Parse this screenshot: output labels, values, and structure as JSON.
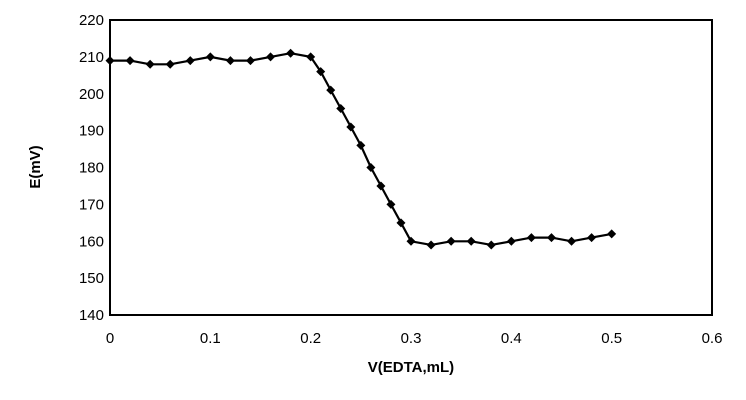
{
  "chart_data": {
    "type": "line",
    "title": "",
    "xlabel": "V(EDTA,mL)",
    "ylabel": "E(mV)",
    "xlim": [
      0,
      0.6
    ],
    "ylim": [
      140,
      220
    ],
    "xticks": [
      0,
      0.1,
      0.2,
      0.3,
      0.4,
      0.5,
      0.6
    ],
    "xtick_labels": [
      "0",
      "0.1",
      "0.2",
      "0.3",
      "0.4",
      "0.5",
      "0.6"
    ],
    "yticks": [
      140,
      150,
      160,
      170,
      180,
      190,
      200,
      210,
      220
    ],
    "ytick_labels": [
      "140",
      "150",
      "160",
      "170",
      "180",
      "190",
      "200",
      "210",
      "220"
    ],
    "grid": false,
    "legend": "none",
    "series": [
      {
        "color": "#000000",
        "marker": "diamond",
        "x": [
          0,
          0.02,
          0.04,
          0.06,
          0.08,
          0.1,
          0.12,
          0.14,
          0.16,
          0.18,
          0.2,
          0.21,
          0.22,
          0.23,
          0.24,
          0.25,
          0.26,
          0.27,
          0.28,
          0.29,
          0.3,
          0.32,
          0.34,
          0.36,
          0.38,
          0.4,
          0.42,
          0.44,
          0.46,
          0.48,
          0.5
        ],
        "y": [
          209,
          209,
          208,
          208,
          209,
          210,
          209,
          209,
          210,
          211,
          210,
          206,
          201,
          196,
          191,
          186,
          180,
          175,
          170,
          165,
          160,
          159,
          160,
          160,
          159,
          160,
          161,
          161,
          160,
          161,
          162
        ]
      }
    ]
  }
}
